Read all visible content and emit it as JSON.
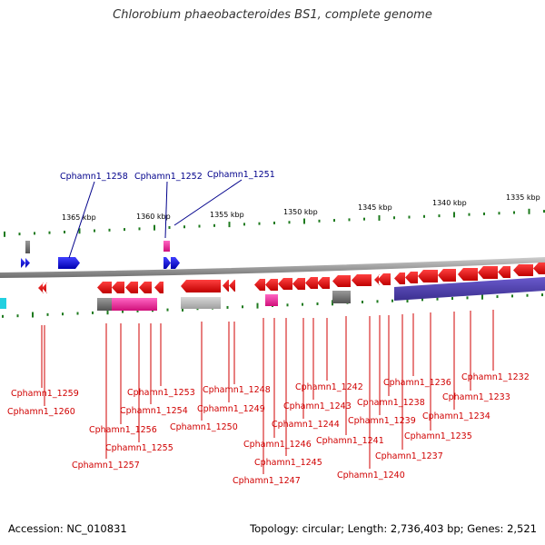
{
  "title": "Chlorobium phaeobacteroides BS1, complete genome",
  "footer": {
    "accession": "Accession: NC_010831",
    "topology": "Topology: circular; Length: 2,736,403 bp; Genes: 2,521"
  },
  "colors": {
    "forward_gene": "#1010e0",
    "reverse_gene": "#e01010",
    "forward_label": "#00008b",
    "reverse_label": "#d00000",
    "backbone": "#888888",
    "tick": "#1e7a1e"
  },
  "scale_ticks": [
    {
      "label": "1365 kbp"
    },
    {
      "label": "1360 kbp"
    },
    {
      "label": "1355 kbp"
    },
    {
      "label": "1350 kbp"
    },
    {
      "label": "1345 kbp"
    },
    {
      "label": "1340 kbp"
    },
    {
      "label": "1335 kbp"
    }
  ],
  "forward_labels": [
    "Cphamn1_1258",
    "Cphamn1_1252",
    "Cphamn1_1251"
  ],
  "reverse_labels": [
    "Cphamn1_1259",
    "Cphamn1_1260",
    "Cphamn1_1256",
    "Cphamn1_1257",
    "Cphamn1_1255",
    "Cphamn1_1253",
    "Cphamn1_1254",
    "Cphamn1_1250",
    "Cphamn1_1248",
    "Cphamn1_1249",
    "Cphamn1_1246",
    "Cphamn1_1247",
    "Cphamn1_1245",
    "Cphamn1_1244",
    "Cphamn1_1243",
    "Cphamn1_1242",
    "Cphamn1_1241",
    "Cphamn1_1240",
    "Cphamn1_1239",
    "Cphamn1_1238",
    "Cphamn1_1237",
    "Cphamn1_1236",
    "Cphamn1_1235",
    "Cphamn1_1234",
    "Cphamn1_1233",
    "Cphamn1_1232"
  ]
}
